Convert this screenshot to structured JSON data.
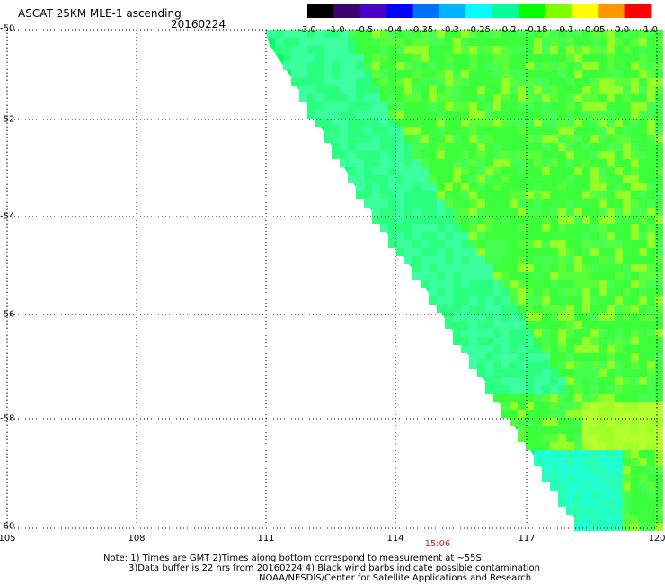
{
  "header": {
    "title": "ASCAT 25KM MLE-1 ascending",
    "date": "20160224"
  },
  "colorbar": {
    "labels": [
      "-3.0",
      "-1.0",
      "-0.5",
      "-0.4",
      "-0.35",
      "-0.3",
      "-0.25",
      "-0.2",
      "-0.15",
      "-0.1",
      "-0.05",
      "0.0",
      "1.0"
    ],
    "colors": [
      "#000000",
      "#3c0070",
      "#4b00c8",
      "#0000ff",
      "#0070ff",
      "#00b4ff",
      "#00ffff",
      "#00ff96",
      "#00ff00",
      "#80ff00",
      "#ffff00",
      "#ff9600",
      "#ff0000"
    ]
  },
  "axes": {
    "lat_labels": [
      "-50",
      "-52",
      "-54",
      "-56",
      "-58",
      "-60"
    ],
    "lon_labels": [
      "105",
      "108",
      "111",
      "114",
      "117",
      "120"
    ]
  },
  "time_label": "15:06",
  "footer": {
    "line1": "Note: 1) Times are GMT 2)Times along bottom correspond to measurement at ~55S",
    "line2": "3)Data buffer is 22 hrs from 20160224 4) Black wind barbs indicate possible contamination",
    "line3": "NOAA/NESDIS/Center for Satellite Applications and Research"
  }
}
